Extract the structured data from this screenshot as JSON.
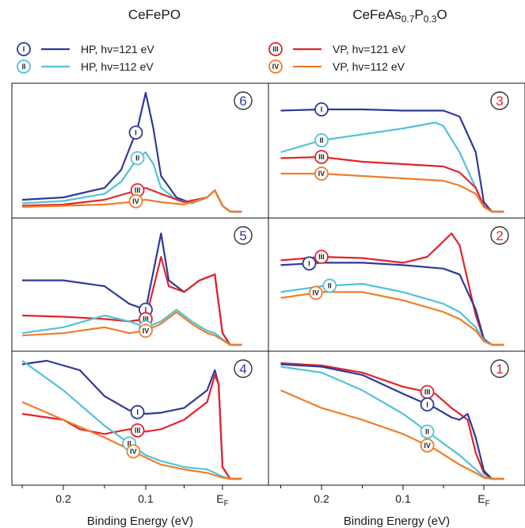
{
  "chart_data": {
    "type": "line",
    "x_axis": {
      "label": "Binding Energy (eV)",
      "ticks": [
        0.2,
        0.1,
        0.0
      ],
      "tick_labels": [
        "0.2",
        "0.1",
        "E_F"
      ],
      "reversed": true,
      "xlim": [
        0.255,
        -0.03
      ]
    },
    "grid": false,
    "column_titles": {
      "left": "CeFePO",
      "right": {
        "base": "CeFeAs",
        "sub1": "0.7",
        "mid": "P",
        "sub2": "0.3",
        "tail": "O"
      }
    },
    "legend": [
      {
        "id": "I",
        "label": "HP, hv=121 eV",
        "color": "#2e3a9a"
      },
      {
        "id": "II",
        "label": "HP, hv=112 eV",
        "color": "#50c3d8"
      },
      {
        "id": "III",
        "label": "VP, hv=121 eV",
        "color": "#e3242b"
      },
      {
        "id": "IV",
        "label": "VP, hv=112 eV",
        "color": "#f07d28"
      }
    ],
    "panels": [
      {
        "id": "6",
        "label_color": "#2e3a9a",
        "series": [
          {
            "id": "I",
            "x": [
              0.25,
              0.2,
              0.15,
              0.13,
              0.11,
              0.1,
              0.09,
              0.08,
              0.06,
              0.04,
              0.02,
              0.01,
              0.0,
              -0.01,
              -0.025
            ],
            "y": [
              0.1,
              0.12,
              0.2,
              0.35,
              0.7,
              1.0,
              0.7,
              0.3,
              0.12,
              0.07,
              0.12,
              0.18,
              0.05,
              0.0,
              0.0
            ]
          },
          {
            "id": "II",
            "x": [
              0.25,
              0.2,
              0.15,
              0.13,
              0.11,
              0.1,
              0.09,
              0.08,
              0.06,
              0.04,
              0.02,
              0.01,
              0.0,
              -0.01,
              -0.025
            ],
            "y": [
              0.07,
              0.09,
              0.15,
              0.25,
              0.45,
              0.5,
              0.4,
              0.2,
              0.1,
              0.07,
              0.12,
              0.18,
              0.05,
              0.0,
              0.0
            ]
          },
          {
            "id": "III",
            "x": [
              0.25,
              0.2,
              0.15,
              0.12,
              0.1,
              0.08,
              0.05,
              0.02,
              0.01,
              0.0,
              -0.01,
              -0.025
            ],
            "y": [
              0.05,
              0.06,
              0.1,
              0.16,
              0.2,
              0.15,
              0.08,
              0.12,
              0.18,
              0.05,
              0.0,
              0.0
            ]
          },
          {
            "id": "IV",
            "x": [
              0.25,
              0.2,
              0.15,
              0.12,
              0.1,
              0.08,
              0.05,
              0.02,
              0.01,
              0.0,
              -0.01,
              -0.025
            ],
            "y": [
              0.04,
              0.05,
              0.06,
              0.08,
              0.1,
              0.08,
              0.06,
              0.12,
              0.18,
              0.05,
              0.0,
              0.0
            ]
          }
        ]
      },
      {
        "id": "5",
        "label_color": "#2e3a9a",
        "series": [
          {
            "id": "I",
            "x": [
              0.25,
              0.2,
              0.15,
              0.12,
              0.1,
              0.08,
              0.07,
              0.05,
              0.03,
              0.01,
              0.0,
              -0.01,
              -0.025
            ],
            "y": [
              0.55,
              0.55,
              0.5,
              0.35,
              0.3,
              0.95,
              0.55,
              0.45,
              0.55,
              0.6,
              0.1,
              0.0,
              0.0
            ]
          },
          {
            "id": "III",
            "x": [
              0.25,
              0.2,
              0.15,
              0.12,
              0.1,
              0.08,
              0.07,
              0.05,
              0.03,
              0.01,
              0.0,
              -0.01,
              -0.025
            ],
            "y": [
              0.25,
              0.24,
              0.22,
              0.2,
              0.22,
              0.75,
              0.5,
              0.45,
              0.55,
              0.6,
              0.1,
              0.0,
              0.0
            ]
          },
          {
            "id": "II",
            "x": [
              0.25,
              0.2,
              0.15,
              0.12,
              0.1,
              0.08,
              0.06,
              0.04,
              0.02,
              0.01,
              0.0,
              -0.01,
              -0.025
            ],
            "y": [
              0.1,
              0.15,
              0.25,
              0.2,
              0.15,
              0.2,
              0.3,
              0.2,
              0.12,
              0.1,
              0.05,
              0.0,
              0.0
            ]
          },
          {
            "id": "IV",
            "x": [
              0.25,
              0.2,
              0.15,
              0.12,
              0.1,
              0.08,
              0.06,
              0.04,
              0.02,
              0.01,
              0.0,
              -0.01,
              -0.025
            ],
            "y": [
              0.08,
              0.1,
              0.15,
              0.1,
              0.12,
              0.18,
              0.28,
              0.18,
              0.1,
              0.08,
              0.04,
              0.0,
              0.0
            ]
          }
        ]
      },
      {
        "id": "4",
        "label_color": "#2e3a9a",
        "series": [
          {
            "id": "I",
            "x": [
              0.25,
              0.22,
              0.2,
              0.18,
              0.15,
              0.12,
              0.1,
              0.08,
              0.05,
              0.02,
              0.01,
              0.005,
              0.0,
              -0.01,
              -0.025
            ],
            "y": [
              0.97,
              1.0,
              0.96,
              0.92,
              0.7,
              0.58,
              0.55,
              0.56,
              0.6,
              0.75,
              0.92,
              0.8,
              0.1,
              0.0,
              0.0
            ]
          },
          {
            "id": "III",
            "x": [
              0.25,
              0.2,
              0.18,
              0.15,
              0.12,
              0.1,
              0.08,
              0.05,
              0.02,
              0.01,
              0.005,
              0.0,
              -0.01,
              -0.025
            ],
            "y": [
              0.55,
              0.5,
              0.42,
              0.38,
              0.42,
              0.4,
              0.42,
              0.5,
              0.65,
              0.88,
              0.8,
              0.1,
              0.0,
              0.0
            ]
          },
          {
            "id": "II",
            "x": [
              0.25,
              0.2,
              0.15,
              0.12,
              0.1,
              0.08,
              0.05,
              0.02,
              0.01,
              0.0,
              -0.01,
              -0.025
            ],
            "y": [
              1.0,
              0.75,
              0.45,
              0.3,
              0.2,
              0.15,
              0.1,
              0.08,
              0.05,
              0.02,
              0.0,
              0.0
            ]
          },
          {
            "id": "IV",
            "x": [
              0.25,
              0.2,
              0.15,
              0.12,
              0.1,
              0.08,
              0.05,
              0.02,
              0.01,
              0.0,
              -0.01,
              -0.025
            ],
            "y": [
              0.65,
              0.5,
              0.35,
              0.25,
              0.18,
              0.12,
              0.08,
              0.05,
              0.03,
              0.01,
              0.0,
              0.0
            ]
          }
        ]
      },
      {
        "id": "3",
        "label_color": "#e3242b",
        "series": [
          {
            "id": "I",
            "x": [
              0.25,
              0.2,
              0.15,
              0.1,
              0.05,
              0.03,
              0.01,
              0.0,
              -0.01,
              -0.025
            ],
            "y": [
              0.85,
              0.86,
              0.86,
              0.85,
              0.85,
              0.8,
              0.5,
              0.08,
              0.0,
              0.0
            ]
          },
          {
            "id": "II",
            "x": [
              0.25,
              0.2,
              0.15,
              0.1,
              0.06,
              0.05,
              0.03,
              0.01,
              0.0,
              -0.01,
              -0.025
            ],
            "y": [
              0.5,
              0.6,
              0.65,
              0.7,
              0.75,
              0.72,
              0.5,
              0.2,
              0.04,
              0.0,
              0.0
            ]
          },
          {
            "id": "III",
            "x": [
              0.25,
              0.2,
              0.15,
              0.1,
              0.05,
              0.03,
              0.01,
              0.0,
              -0.01,
              -0.025
            ],
            "y": [
              0.45,
              0.46,
              0.42,
              0.4,
              0.38,
              0.33,
              0.2,
              0.05,
              0.0,
              0.0
            ]
          },
          {
            "id": "IV",
            "x": [
              0.25,
              0.2,
              0.15,
              0.1,
              0.05,
              0.03,
              0.01,
              0.0,
              -0.01,
              -0.025
            ],
            "y": [
              0.32,
              0.32,
              0.3,
              0.28,
              0.26,
              0.22,
              0.15,
              0.04,
              0.0,
              0.0
            ]
          }
        ]
      },
      {
        "id": "2",
        "label_color": "#e3242b",
        "series": [
          {
            "id": "III",
            "x": [
              0.25,
              0.2,
              0.15,
              0.1,
              0.07,
              0.04,
              0.03,
              0.02,
              0.01,
              0.0,
              -0.01,
              -0.025
            ],
            "y": [
              0.72,
              0.75,
              0.74,
              0.7,
              0.75,
              0.95,
              0.85,
              0.55,
              0.25,
              0.05,
              0.0,
              0.0
            ]
          },
          {
            "id": "I",
            "x": [
              0.25,
              0.2,
              0.15,
              0.1,
              0.05,
              0.03,
              0.01,
              0.0,
              -0.01,
              -0.025
            ],
            "y": [
              0.68,
              0.7,
              0.7,
              0.68,
              0.65,
              0.6,
              0.3,
              0.05,
              0.0,
              0.0
            ]
          },
          {
            "id": "II",
            "x": [
              0.25,
              0.2,
              0.15,
              0.1,
              0.05,
              0.03,
              0.01,
              0.0,
              -0.01,
              -0.025
            ],
            "y": [
              0.45,
              0.5,
              0.52,
              0.45,
              0.35,
              0.28,
              0.15,
              0.04,
              0.0,
              0.0
            ]
          },
          {
            "id": "IV",
            "x": [
              0.25,
              0.2,
              0.15,
              0.1,
              0.05,
              0.03,
              0.01,
              0.0,
              -0.01,
              -0.025
            ],
            "y": [
              0.4,
              0.45,
              0.45,
              0.38,
              0.28,
              0.22,
              0.12,
              0.03,
              0.0,
              0.0
            ]
          }
        ]
      },
      {
        "id": "1",
        "label_color": "#e3242b",
        "series": [
          {
            "id": "III",
            "x": [
              0.25,
              0.2,
              0.15,
              0.1,
              0.06,
              0.04,
              0.03,
              0.02,
              0.01,
              0.0,
              -0.01,
              -0.025
            ],
            "y": [
              0.98,
              0.96,
              0.9,
              0.78,
              0.72,
              0.6,
              0.55,
              0.5,
              0.22,
              0.05,
              0.0,
              0.0
            ]
          },
          {
            "id": "I",
            "x": [
              0.25,
              0.2,
              0.15,
              0.1,
              0.06,
              0.04,
              0.03,
              0.02,
              0.01,
              0.0,
              -0.01,
              -0.025
            ],
            "y": [
              0.97,
              0.95,
              0.88,
              0.72,
              0.6,
              0.52,
              0.5,
              0.55,
              0.35,
              0.07,
              0.0,
              0.0
            ]
          },
          {
            "id": "II",
            "x": [
              0.25,
              0.2,
              0.15,
              0.1,
              0.06,
              0.03,
              0.01,
              0.0,
              -0.01,
              -0.025
            ],
            "y": [
              0.95,
              0.9,
              0.75,
              0.55,
              0.35,
              0.2,
              0.08,
              0.02,
              0.0,
              0.0
            ]
          },
          {
            "id": "IV",
            "x": [
              0.25,
              0.2,
              0.15,
              0.1,
              0.06,
              0.03,
              0.01,
              0.0,
              -0.01,
              -0.025
            ],
            "y": [
              0.75,
              0.6,
              0.5,
              0.38,
              0.25,
              0.12,
              0.05,
              0.01,
              0.0,
              0.0
            ]
          }
        ]
      }
    ]
  }
}
